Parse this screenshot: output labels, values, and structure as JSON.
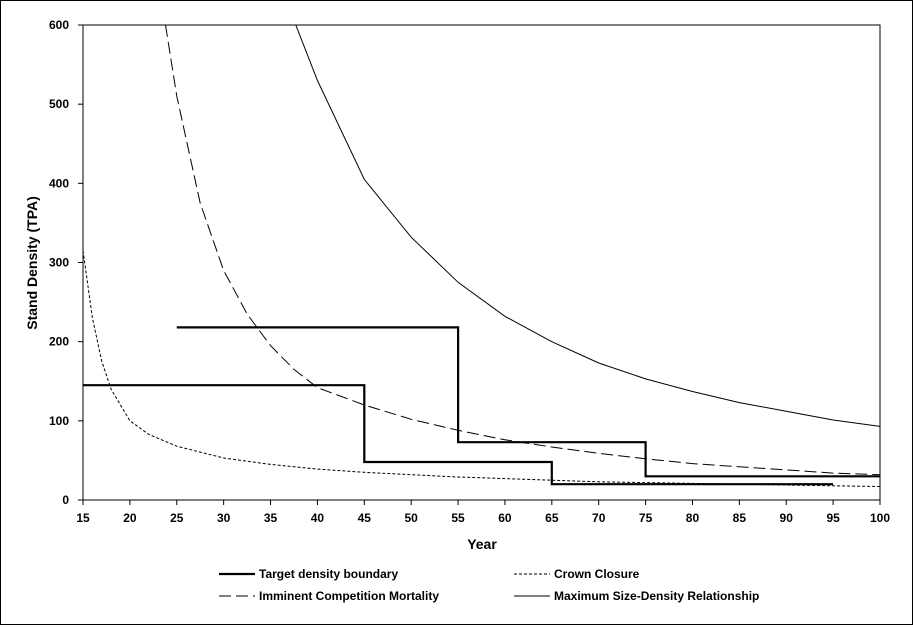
{
  "chart_data": {
    "type": "line",
    "title": "",
    "xlabel": "Year",
    "ylabel": "Stand Density (TPA)",
    "xlim": [
      15,
      100
    ],
    "ylim": [
      0,
      600
    ],
    "x_ticks": [
      15,
      20,
      25,
      30,
      35,
      40,
      45,
      50,
      55,
      60,
      65,
      70,
      75,
      80,
      85,
      90,
      95,
      100
    ],
    "y_ticks": [
      0,
      100,
      200,
      300,
      400,
      500,
      600
    ],
    "grid": false,
    "legend_position": "bottom",
    "series": [
      {
        "name": "Target density boundary",
        "style": "thick-solid",
        "color": "#000000",
        "segments": [
          [
            [
              15,
              145
            ],
            [
              45,
              145
            ],
            [
              45,
              48
            ],
            [
              65,
              48
            ],
            [
              65,
              20
            ],
            [
              95,
              20
            ]
          ],
          [
            [
              25,
              218
            ],
            [
              55,
              218
            ],
            [
              55,
              73
            ],
            [
              75,
              73
            ],
            [
              75,
              30
            ],
            [
              100,
              30
            ]
          ]
        ]
      },
      {
        "name": "Crown Closure",
        "style": "dotted",
        "color": "#000000",
        "x": [
          15,
          16,
          17,
          18,
          20,
          22,
          25,
          30,
          35,
          40,
          45,
          50,
          55,
          60,
          65,
          70,
          75,
          80,
          85,
          90,
          95,
          100
        ],
        "y": [
          315,
          230,
          175,
          140,
          100,
          83,
          68,
          53,
          45,
          39,
          35,
          32,
          29,
          27,
          25,
          23,
          22,
          21,
          20,
          19,
          18,
          17
        ]
      },
      {
        "name": "Imminent Competition Mortality",
        "style": "dashed",
        "color": "#000000",
        "x": [
          23.8,
          25,
          27.5,
          30,
          32.5,
          35,
          37.5,
          40,
          45,
          50,
          55,
          60,
          65,
          70,
          75,
          80,
          85,
          90,
          95,
          100
        ],
        "y": [
          600,
          510,
          375,
          290,
          235,
          195,
          165,
          142,
          120,
          102,
          88,
          76,
          67,
          59,
          52,
          46,
          42,
          38,
          34,
          32
        ]
      },
      {
        "name": "Maximum Size-Density Relationship",
        "style": "thin-solid",
        "color": "#000000",
        "x": [
          37.7,
          40,
          45,
          50,
          55,
          60,
          65,
          70,
          75,
          80,
          85,
          90,
          95,
          100
        ],
        "y": [
          600,
          530,
          405,
          332,
          275,
          232,
          200,
          173,
          153,
          137,
          123,
          112,
          101,
          93
        ]
      }
    ]
  }
}
